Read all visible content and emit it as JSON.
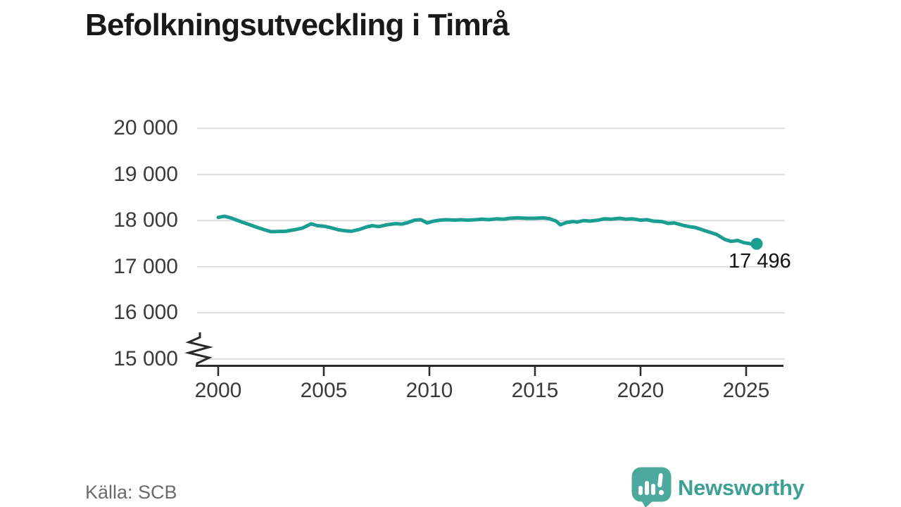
{
  "title": "Befolkningsutveckling i Timrå",
  "source": "Källa: SCB",
  "branding": {
    "name": "Newsworthy",
    "icon": "newsworthy-chart-bubble-icon",
    "wordmark_color": "#3da094",
    "icon_color": "#4da99e",
    "icon_glyph_color": "#ffffff"
  },
  "colors": {
    "line": "#1a9e92",
    "grid": "#dcdcdc",
    "axis": "#2a2a2a",
    "tick_label": "#3b3b3b",
    "annotation_text": "#111111",
    "title_text": "#191919",
    "source_text": "#6b6b6b",
    "background": "#ffffff"
  },
  "chart_data": {
    "type": "line",
    "title": "Befolkningsutveckling i Timrå",
    "xlabel": "",
    "ylabel": "",
    "legend": "none",
    "grid": "horizontal",
    "y_axis_break": true,
    "xlim": [
      2000,
      2026.8
    ],
    "ylim_shown": [
      15000,
      20000
    ],
    "x_ticks": [
      {
        "value": 2000,
        "label": "2000"
      },
      {
        "value": 2005,
        "label": "2005"
      },
      {
        "value": 2010,
        "label": "2010"
      },
      {
        "value": 2015,
        "label": "2015"
      },
      {
        "value": 2020,
        "label": "2020"
      },
      {
        "value": 2025,
        "label": "2025"
      }
    ],
    "y_ticks": [
      {
        "value": 20000,
        "label": "20 000"
      },
      {
        "value": 19000,
        "label": "19 000"
      },
      {
        "value": 18000,
        "label": "18 000"
      },
      {
        "value": 17000,
        "label": "17 000"
      },
      {
        "value": 16000,
        "label": "16 000"
      },
      {
        "value": 15000,
        "label": "15 000"
      }
    ],
    "series": [
      {
        "name": "Befolkning",
        "x": [
          2000.0,
          2000.3,
          2000.6,
          2001.0,
          2001.4,
          2001.8,
          2002.2,
          2002.5,
          2002.8,
          2003.2,
          2003.6,
          2004.0,
          2004.4,
          2004.7,
          2005.0,
          2005.3,
          2005.7,
          2006.0,
          2006.3,
          2006.7,
          2007.0,
          2007.3,
          2007.6,
          2008.0,
          2008.4,
          2008.7,
          2009.0,
          2009.3,
          2009.6,
          2009.9,
          2010.2,
          2010.5,
          2010.8,
          2011.2,
          2011.5,
          2011.8,
          2012.2,
          2012.5,
          2012.8,
          2013.2,
          2013.5,
          2013.8,
          2014.2,
          2014.6,
          2015.0,
          2015.4,
          2015.7,
          2016.0,
          2016.2,
          2016.5,
          2016.8,
          2017.0,
          2017.3,
          2017.6,
          2018.0,
          2018.3,
          2018.6,
          2019.0,
          2019.3,
          2019.6,
          2020.0,
          2020.3,
          2020.6,
          2021.0,
          2021.3,
          2021.6,
          2022.0,
          2022.3,
          2022.6,
          2023.0,
          2023.3,
          2023.6,
          2024.0,
          2024.3,
          2024.6,
          2024.9,
          2025.2,
          2025.4,
          2025.5
        ],
        "y": [
          18070,
          18095,
          18060,
          17990,
          17925,
          17860,
          17800,
          17760,
          17765,
          17770,
          17800,
          17840,
          17930,
          17890,
          17880,
          17850,
          17800,
          17780,
          17770,
          17810,
          17860,
          17890,
          17870,
          17910,
          17935,
          17925,
          17960,
          18010,
          18020,
          17950,
          17990,
          18010,
          18020,
          18010,
          18020,
          18010,
          18020,
          18030,
          18020,
          18040,
          18030,
          18050,
          18060,
          18050,
          18050,
          18060,
          18040,
          17990,
          17910,
          17960,
          17980,
          17970,
          18000,
          17990,
          18010,
          18040,
          18030,
          18050,
          18030,
          18040,
          18010,
          18020,
          17990,
          17980,
          17940,
          17950,
          17900,
          17870,
          17850,
          17790,
          17745,
          17700,
          17590,
          17550,
          17570,
          17520,
          17500,
          17470,
          17496
        ]
      }
    ],
    "end_point": {
      "x": 2025.5,
      "value": 17496,
      "label": "17 496"
    }
  }
}
